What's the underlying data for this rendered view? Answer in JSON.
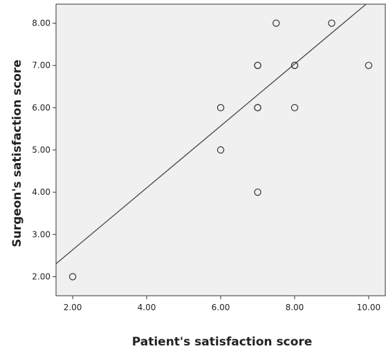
{
  "chart_data": {
    "type": "scatter",
    "title": "",
    "xlabel": "Patient's satisfaction score",
    "ylabel": "Surgeon's satisfaction score",
    "xlim": [
      1.55,
      10.45
    ],
    "ylim": [
      1.55,
      8.45
    ],
    "x_ticks": [
      2,
      4,
      6,
      8,
      10
    ],
    "y_ticks": [
      2,
      3,
      4,
      5,
      6,
      7,
      8
    ],
    "x_tick_labels": [
      "2.00",
      "4.00",
      "6.00",
      "8.00",
      "10.00"
    ],
    "y_tick_labels": [
      "2.00",
      "3.00",
      "4.00",
      "5.00",
      "6.00",
      "7.00",
      "8.00"
    ],
    "points": [
      {
        "x": 2,
        "y": 2
      },
      {
        "x": 6,
        "y": 6
      },
      {
        "x": 6,
        "y": 5
      },
      {
        "x": 7,
        "y": 7
      },
      {
        "x": 7,
        "y": 7
      },
      {
        "x": 7,
        "y": 6
      },
      {
        "x": 7,
        "y": 6
      },
      {
        "x": 7,
        "y": 4
      },
      {
        "x": 7.5,
        "y": 8
      },
      {
        "x": 8,
        "y": 7
      },
      {
        "x": 8,
        "y": 7
      },
      {
        "x": 8,
        "y": 6
      },
      {
        "x": 9,
        "y": 8
      },
      {
        "x": 10,
        "y": 7
      }
    ],
    "fit_line": {
      "from": {
        "x": 1.5,
        "y": 2.27
      },
      "to": {
        "x": 10.0,
        "y": 8.5
      }
    },
    "grid": false,
    "legend": "none",
    "colors": {
      "plot_background": "#f0f0f0",
      "frame": "#333333",
      "marker": "#333333",
      "fit_line": "#444444",
      "text": "#222222"
    }
  }
}
